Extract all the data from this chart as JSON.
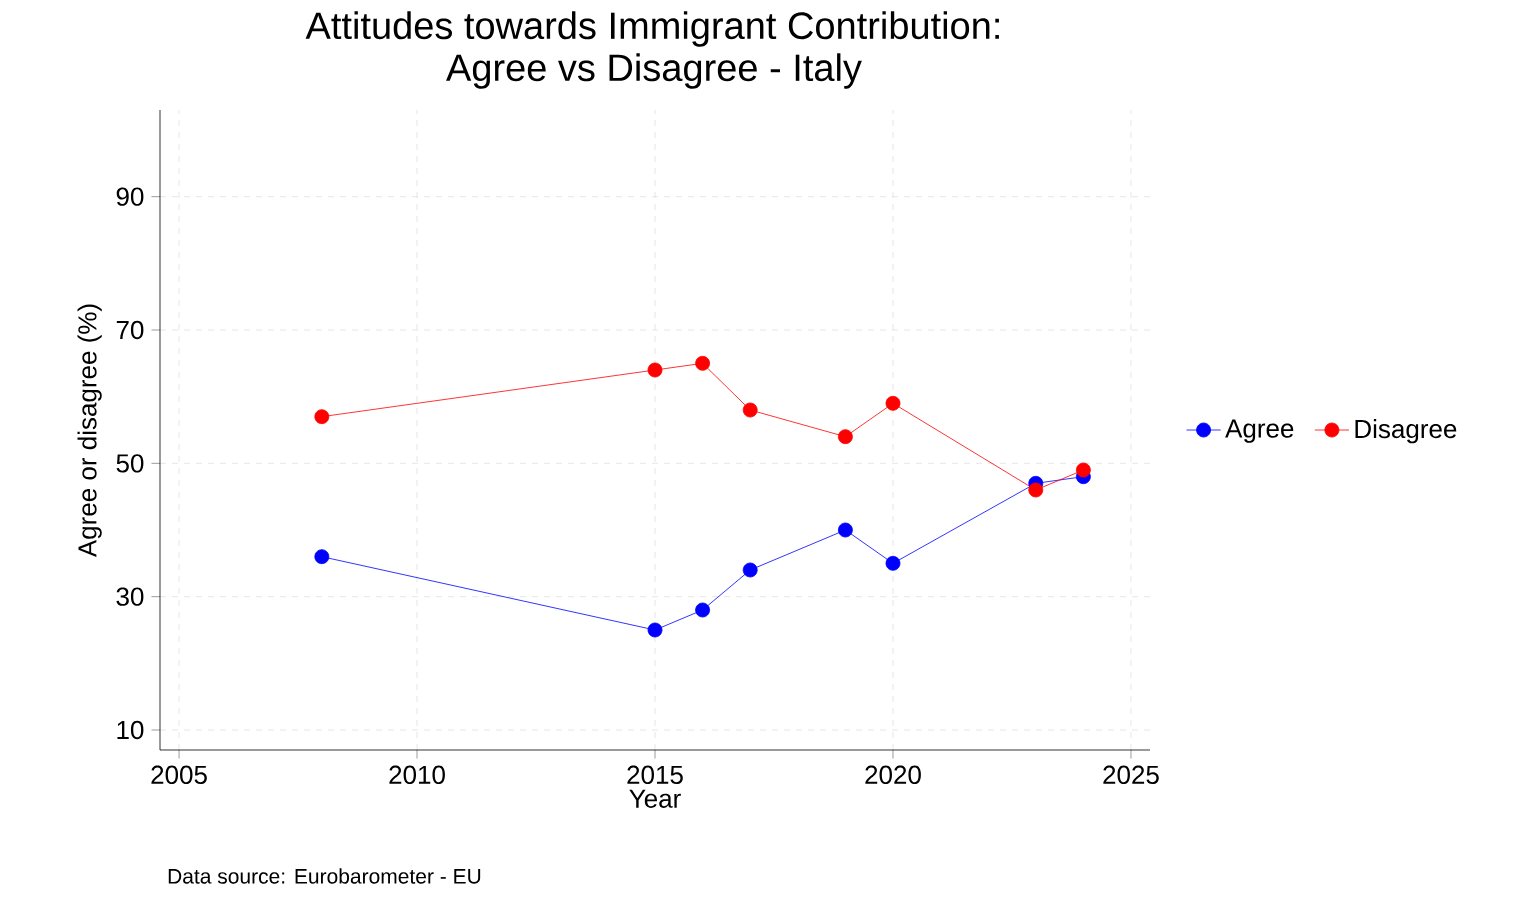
{
  "chart_data": {
    "type": "line",
    "title": "Attitudes towards Immigrant Contribution:\nAgree vs Disagree - Italy",
    "xlabel": "Year",
    "ylabel": "Agree or disagree (%)",
    "x": [
      2008,
      2015,
      2016,
      2017,
      2019,
      2020,
      2023,
      2024
    ],
    "series": [
      {
        "name": "Agree",
        "color": "#0000ff",
        "values": [
          36,
          25,
          28,
          34,
          40,
          35,
          47,
          48
        ]
      },
      {
        "name": "Disagree",
        "color": "#ff0000",
        "values": [
          57,
          64,
          65,
          58,
          54,
          59,
          46,
          49
        ]
      }
    ],
    "xlim": [
      2004.6,
      2025.4
    ],
    "xticks": [
      2005,
      2010,
      2015,
      2020,
      2025
    ],
    "ylim": [
      7,
      103
    ],
    "yticks": [
      10,
      30,
      50,
      70,
      90
    ],
    "grid": true,
    "legend": "right",
    "marker": "circle",
    "line_style": "solid",
    "annotations": [
      "Data source: Eurobarometer - EU"
    ]
  }
}
